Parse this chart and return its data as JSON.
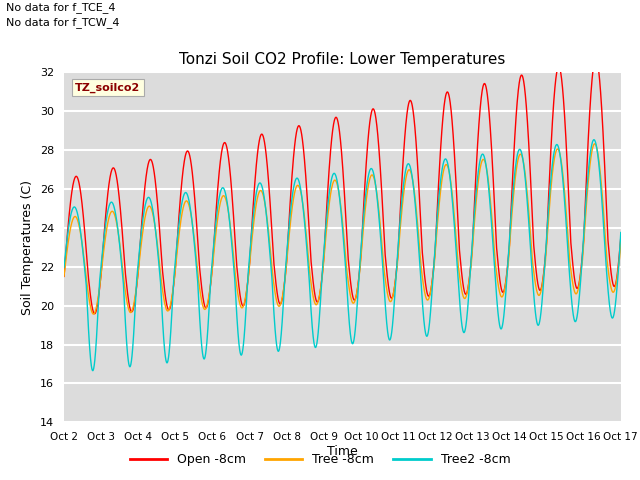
{
  "title": "Tonzi Soil CO2 Profile: Lower Temperatures",
  "ylabel": "Soil Temperatures (C)",
  "xlabel": "Time",
  "note1": "No data for f_TCE_4",
  "note2": "No data for f_TCW_4",
  "dataset_label": "TZ_soilco2",
  "ylim": [
    14,
    32
  ],
  "yticks": [
    14,
    16,
    18,
    20,
    22,
    24,
    26,
    28,
    30,
    32
  ],
  "x_tick_labels": [
    "Oct 2",
    "Oct 3",
    "Oct 4",
    "Oct 5",
    "Oct 6",
    "Oct 7",
    "Oct 8",
    "Oct 9",
    "Oct 10",
    "Oct 11",
    "Oct 12",
    "Oct 13",
    "Oct 14",
    "Oct 15",
    "Oct 16",
    "Oct 17"
  ],
  "legend_labels": [
    "Open -8cm",
    "Tree -8cm",
    "Tree2 -8cm"
  ],
  "legend_colors": [
    "#ff0000",
    "#ffa500",
    "#00cccc"
  ],
  "plot_bg_color": "#dcdcdc",
  "open_color": "#ff0000",
  "tree_color": "#ffa500",
  "tree2_color": "#00cccc",
  "n_days": 15,
  "pts_per_day": 200
}
